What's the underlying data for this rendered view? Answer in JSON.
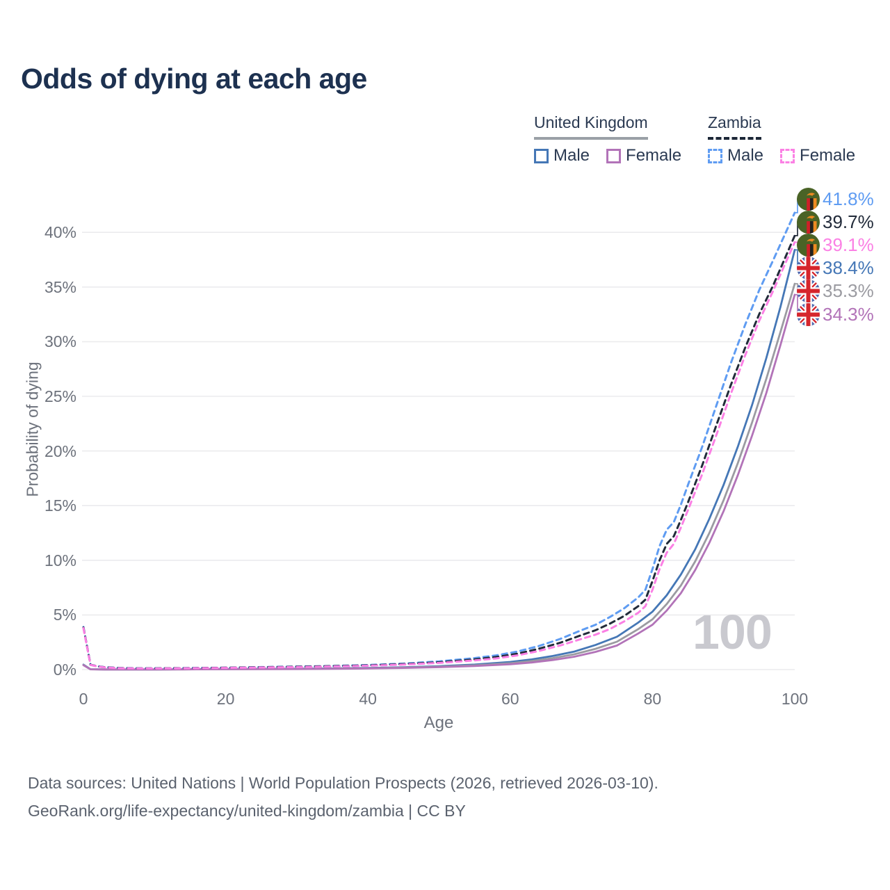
{
  "title": "Odds of dying at each age",
  "legend": {
    "uk": {
      "country": "United Kingdom",
      "male": "Male",
      "female": "Female"
    },
    "zambia": {
      "country": "Zambia",
      "male": "Male",
      "female": "Female"
    }
  },
  "colors": {
    "uk_male": "#4577b6",
    "uk_female": "#b273b8",
    "uk_both": "#9b9ba1",
    "zambia_male": "#5f9cf2",
    "zambia_female": "#fb80e4",
    "zambia_both": "#222b3a",
    "grid": "#ebebee",
    "axis_text": "#6d727c",
    "title_text": "#1d3150",
    "annotation": "#c9c9cf"
  },
  "chart_data": {
    "type": "line",
    "title": "Odds of dying at each age",
    "xlabel": "Age",
    "ylabel": "Probability of dying",
    "xlim": [
      0,
      100
    ],
    "ylim": [
      0,
      43
    ],
    "x_ticks": [
      0,
      20,
      40,
      60,
      80,
      100
    ],
    "y_ticks": [
      "0%",
      "5%",
      "10%",
      "15%",
      "20%",
      "25%",
      "30%",
      "35%",
      "40%"
    ],
    "y_tick_values": [
      0,
      5,
      10,
      15,
      20,
      25,
      30,
      35,
      40
    ],
    "grid": "horizontal-only",
    "legend_position": "top-right",
    "annotation": "100",
    "series": [
      {
        "name": "Zambia Male",
        "country": "Zambia",
        "sex": "male",
        "dash": true,
        "color": "#5f9cf2",
        "end_label": "41.8%",
        "flag": "zambia",
        "points": [
          [
            0,
            3.9
          ],
          [
            1,
            0.45
          ],
          [
            2,
            0.3
          ],
          [
            3,
            0.22
          ],
          [
            5,
            0.15
          ],
          [
            8,
            0.12
          ],
          [
            12,
            0.13
          ],
          [
            16,
            0.15
          ],
          [
            20,
            0.18
          ],
          [
            25,
            0.23
          ],
          [
            30,
            0.28
          ],
          [
            35,
            0.33
          ],
          [
            40,
            0.42
          ],
          [
            45,
            0.55
          ],
          [
            50,
            0.75
          ],
          [
            55,
            1.05
          ],
          [
            58,
            1.3
          ],
          [
            61,
            1.65
          ],
          [
            64,
            2.15
          ],
          [
            67,
            2.8
          ],
          [
            70,
            3.6
          ],
          [
            72,
            4.1
          ],
          [
            74,
            4.8
          ],
          [
            76,
            5.6
          ],
          [
            78,
            6.6
          ],
          [
            79,
            7.3
          ],
          [
            80,
            9.2
          ],
          [
            81,
            11.3
          ],
          [
            82,
            12.8
          ],
          [
            83,
            13.5
          ],
          [
            84,
            15.1
          ],
          [
            85,
            16.9
          ],
          [
            87,
            20.4
          ],
          [
            89,
            24.2
          ],
          [
            91,
            28.0
          ],
          [
            93,
            31.5
          ],
          [
            95,
            34.7
          ],
          [
            97,
            37.5
          ],
          [
            100,
            41.8
          ]
        ]
      },
      {
        "name": "Zambia Both sexes",
        "country": "Zambia",
        "sex": "both",
        "dash": true,
        "color": "#222b3a",
        "end_label": "39.7%",
        "flag": "zambia",
        "points": [
          [
            0,
            3.85
          ],
          [
            1,
            0.44
          ],
          [
            2,
            0.29
          ],
          [
            3,
            0.21
          ],
          [
            5,
            0.14
          ],
          [
            8,
            0.11
          ],
          [
            12,
            0.12
          ],
          [
            16,
            0.14
          ],
          [
            20,
            0.17
          ],
          [
            25,
            0.21
          ],
          [
            30,
            0.26
          ],
          [
            35,
            0.31
          ],
          [
            40,
            0.38
          ],
          [
            45,
            0.5
          ],
          [
            50,
            0.67
          ],
          [
            55,
            0.93
          ],
          [
            58,
            1.15
          ],
          [
            61,
            1.45
          ],
          [
            64,
            1.9
          ],
          [
            67,
            2.45
          ],
          [
            70,
            3.15
          ],
          [
            72,
            3.6
          ],
          [
            74,
            4.2
          ],
          [
            76,
            4.9
          ],
          [
            78,
            5.8
          ],
          [
            79,
            6.4
          ],
          [
            80,
            8.1
          ],
          [
            81,
            10.0
          ],
          [
            82,
            11.5
          ],
          [
            83,
            12.2
          ],
          [
            84,
            13.7
          ],
          [
            85,
            15.3
          ],
          [
            87,
            18.7
          ],
          [
            89,
            22.4
          ],
          [
            91,
            26.0
          ],
          [
            93,
            29.4
          ],
          [
            95,
            32.5
          ],
          [
            97,
            35.2
          ],
          [
            100,
            39.7
          ]
        ]
      },
      {
        "name": "Zambia Female",
        "country": "Zambia",
        "sex": "female",
        "dash": true,
        "color": "#fb80e4",
        "end_label": "39.1%",
        "flag": "zambia",
        "points": [
          [
            0,
            3.8
          ],
          [
            1,
            0.43
          ],
          [
            2,
            0.28
          ],
          [
            3,
            0.2
          ],
          [
            5,
            0.13
          ],
          [
            8,
            0.1
          ],
          [
            12,
            0.11
          ],
          [
            16,
            0.13
          ],
          [
            20,
            0.15
          ],
          [
            25,
            0.19
          ],
          [
            30,
            0.23
          ],
          [
            35,
            0.28
          ],
          [
            40,
            0.35
          ],
          [
            45,
            0.46
          ],
          [
            50,
            0.61
          ],
          [
            55,
            0.84
          ],
          [
            58,
            1.02
          ],
          [
            61,
            1.3
          ],
          [
            64,
            1.7
          ],
          [
            67,
            2.2
          ],
          [
            70,
            2.8
          ],
          [
            72,
            3.2
          ],
          [
            74,
            3.7
          ],
          [
            76,
            4.4
          ],
          [
            78,
            5.2
          ],
          [
            79,
            5.8
          ],
          [
            80,
            7.3
          ],
          [
            81,
            9.2
          ],
          [
            82,
            10.7
          ],
          [
            83,
            11.5
          ],
          [
            84,
            13.0
          ],
          [
            85,
            14.6
          ],
          [
            87,
            17.9
          ],
          [
            89,
            21.5
          ],
          [
            91,
            25.2
          ],
          [
            93,
            28.7
          ],
          [
            95,
            31.9
          ],
          [
            97,
            34.7
          ],
          [
            100,
            39.1
          ]
        ]
      },
      {
        "name": "United Kingdom Male",
        "country": "United Kingdom",
        "sex": "male",
        "dash": false,
        "color": "#4577b6",
        "end_label": "38.4%",
        "flag": "uk",
        "points": [
          [
            0,
            0.45
          ],
          [
            1,
            0.03
          ],
          [
            3,
            0.015
          ],
          [
            6,
            0.01
          ],
          [
            10,
            0.012
          ],
          [
            14,
            0.025
          ],
          [
            18,
            0.05
          ],
          [
            22,
            0.055
          ],
          [
            26,
            0.065
          ],
          [
            30,
            0.08
          ],
          [
            35,
            0.11
          ],
          [
            40,
            0.15
          ],
          [
            45,
            0.21
          ],
          [
            50,
            0.31
          ],
          [
            55,
            0.46
          ],
          [
            60,
            0.7
          ],
          [
            63,
            0.93
          ],
          [
            66,
            1.25
          ],
          [
            69,
            1.65
          ],
          [
            72,
            2.25
          ],
          [
            75,
            3.0
          ],
          [
            78,
            4.3
          ],
          [
            80,
            5.3
          ],
          [
            82,
            6.8
          ],
          [
            84,
            8.7
          ],
          [
            86,
            11.0
          ],
          [
            88,
            13.8
          ],
          [
            90,
            16.9
          ],
          [
            92,
            20.4
          ],
          [
            94,
            24.2
          ],
          [
            96,
            28.5
          ],
          [
            98,
            33.2
          ],
          [
            100,
            38.4
          ]
        ]
      },
      {
        "name": "United Kingdom Both sexes",
        "country": "United Kingdom",
        "sex": "both",
        "dash": false,
        "color": "#9b9ba1",
        "end_label": "35.3%",
        "flag": "uk",
        "points": [
          [
            0,
            0.42
          ],
          [
            1,
            0.028
          ],
          [
            3,
            0.014
          ],
          [
            6,
            0.009
          ],
          [
            10,
            0.011
          ],
          [
            14,
            0.02
          ],
          [
            18,
            0.04
          ],
          [
            22,
            0.045
          ],
          [
            26,
            0.055
          ],
          [
            30,
            0.065
          ],
          [
            35,
            0.09
          ],
          [
            40,
            0.12
          ],
          [
            45,
            0.18
          ],
          [
            50,
            0.26
          ],
          [
            55,
            0.39
          ],
          [
            60,
            0.58
          ],
          [
            63,
            0.78
          ],
          [
            66,
            1.05
          ],
          [
            69,
            1.4
          ],
          [
            72,
            1.9
          ],
          [
            75,
            2.55
          ],
          [
            78,
            3.7
          ],
          [
            80,
            4.6
          ],
          [
            82,
            6.0
          ],
          [
            84,
            7.7
          ],
          [
            86,
            9.9
          ],
          [
            88,
            12.5
          ],
          [
            90,
            15.5
          ],
          [
            92,
            18.9
          ],
          [
            94,
            22.6
          ],
          [
            96,
            26.6
          ],
          [
            98,
            30.9
          ],
          [
            100,
            35.3
          ]
        ]
      },
      {
        "name": "United Kingdom Female",
        "country": "United Kingdom",
        "sex": "female",
        "dash": false,
        "color": "#b273b8",
        "end_label": "34.3%",
        "flag": "uk",
        "points": [
          [
            0,
            0.4
          ],
          [
            1,
            0.025
          ],
          [
            3,
            0.012
          ],
          [
            6,
            0.008
          ],
          [
            10,
            0.01
          ],
          [
            14,
            0.016
          ],
          [
            18,
            0.03
          ],
          [
            22,
            0.035
          ],
          [
            26,
            0.04
          ],
          [
            30,
            0.05
          ],
          [
            35,
            0.07
          ],
          [
            40,
            0.1
          ],
          [
            45,
            0.15
          ],
          [
            50,
            0.22
          ],
          [
            55,
            0.33
          ],
          [
            60,
            0.49
          ],
          [
            63,
            0.65
          ],
          [
            66,
            0.88
          ],
          [
            69,
            1.18
          ],
          [
            72,
            1.62
          ],
          [
            75,
            2.2
          ],
          [
            78,
            3.3
          ],
          [
            80,
            4.1
          ],
          [
            82,
            5.4
          ],
          [
            84,
            7.0
          ],
          [
            86,
            9.1
          ],
          [
            88,
            11.6
          ],
          [
            90,
            14.5
          ],
          [
            92,
            17.8
          ],
          [
            94,
            21.4
          ],
          [
            96,
            25.3
          ],
          [
            98,
            29.7
          ],
          [
            100,
            34.3
          ]
        ]
      }
    ]
  },
  "footer": {
    "line1": "Data sources: United Nations | World Population Prospects (2026, retrieved 2026-03-10).",
    "line2": "GeoRank.org/life-expectancy/united-kingdom/zambia | CC BY"
  }
}
